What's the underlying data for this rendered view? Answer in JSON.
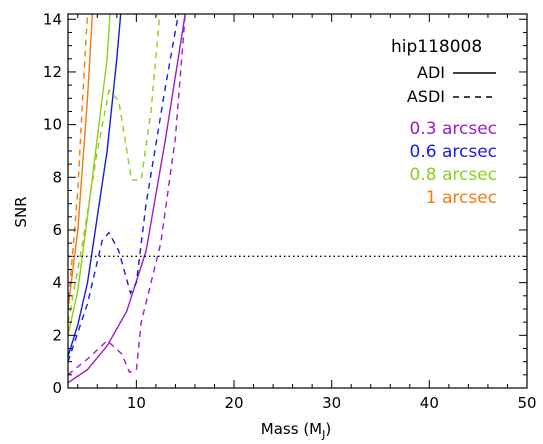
{
  "chart_data": {
    "type": "line",
    "title": "",
    "xlabel": "Mass (M",
    "xlabel_sub": "J",
    "xlabel_close": ")",
    "ylabel": "SNR",
    "xlim": [
      3,
      50
    ],
    "ylim": [
      0,
      14.2
    ],
    "xticks": [
      10,
      20,
      30,
      40,
      50
    ],
    "yticks": [
      0,
      2,
      4,
      6,
      8,
      10,
      12,
      14
    ],
    "threshold": {
      "y": 5,
      "style": "dotted"
    },
    "legend": {
      "title": "hip118008",
      "styles": [
        {
          "label": "ADI",
          "dash": "solid"
        },
        {
          "label": "ASDI",
          "dash": "dashed"
        }
      ],
      "separations": [
        {
          "value": "0.3",
          "unit": "arcsec",
          "color": "#9b1ccf"
        },
        {
          "value": "0.6",
          "unit": "arcsec",
          "color": "#1a1ae6"
        },
        {
          "value": "0.8",
          "unit": "arcsec",
          "color": "#8fcf1a"
        },
        {
          "value": "1",
          "unit": "arcsec",
          "color": "#f07c12"
        }
      ]
    },
    "series": [
      {
        "sep": "0.3",
        "method": "ADI",
        "color": "#9b1ccf",
        "dash": "solid",
        "points": [
          [
            3,
            0.2
          ],
          [
            5,
            0.7
          ],
          [
            7,
            1.6
          ],
          [
            9,
            2.9
          ],
          [
            11,
            5.2
          ],
          [
            13,
            9.5
          ],
          [
            15,
            14.2
          ]
        ]
      },
      {
        "sep": "0.3",
        "method": "ASDI",
        "color": "#9b1ccf",
        "dash": "dashed",
        "points": [
          [
            3,
            0.5
          ],
          [
            5,
            1.1
          ],
          [
            7,
            1.8
          ],
          [
            8.5,
            1.3
          ],
          [
            9.3,
            0.6
          ],
          [
            10,
            0.7
          ],
          [
            10.5,
            2.5
          ],
          [
            12.5,
            5.5
          ],
          [
            14,
            9.5
          ],
          [
            15,
            14.2
          ]
        ]
      },
      {
        "sep": "0.6",
        "method": "ADI",
        "color": "#1a1ae6",
        "dash": "solid",
        "points": [
          [
            3,
            1.2
          ],
          [
            4,
            2.4
          ],
          [
            5,
            4.0
          ],
          [
            6,
            6.5
          ],
          [
            7,
            9.0
          ],
          [
            8,
            12.5
          ],
          [
            8.4,
            14.2
          ]
        ]
      },
      {
        "sep": "0.6",
        "method": "ASDI",
        "color": "#1a1ae6",
        "dash": "dashed",
        "points": [
          [
            3,
            1.0
          ],
          [
            5,
            3.2
          ],
          [
            6.5,
            5.6
          ],
          [
            7.2,
            5.9
          ],
          [
            8.2,
            5.2
          ],
          [
            9.4,
            3.6
          ],
          [
            10,
            4.0
          ],
          [
            11,
            7.0
          ],
          [
            13,
            11.5
          ],
          [
            14.3,
            14.2
          ]
        ]
      },
      {
        "sep": "0.8",
        "method": "ADI",
        "color": "#8fcf1a",
        "dash": "solid",
        "points": [
          [
            3,
            2.0
          ],
          [
            4,
            3.7
          ],
          [
            5,
            6.5
          ],
          [
            6,
            9.5
          ],
          [
            7,
            12.5
          ],
          [
            7.3,
            14.2
          ]
        ]
      },
      {
        "sep": "0.8",
        "method": "ASDI",
        "color": "#8fcf1a",
        "dash": "dashed",
        "points": [
          [
            3,
            2.5
          ],
          [
            4.5,
            5.5
          ],
          [
            6,
            9.0
          ],
          [
            7.2,
            11.3
          ],
          [
            8.2,
            10.9
          ],
          [
            9.5,
            7.9
          ],
          [
            10.5,
            7.9
          ],
          [
            11.5,
            10.5
          ],
          [
            12.4,
            14.2
          ]
        ]
      },
      {
        "sep": "1",
        "method": "ADI",
        "color": "#f07c12",
        "dash": "solid",
        "points": [
          [
            3,
            3.0
          ],
          [
            4,
            6.0
          ],
          [
            5,
            11.0
          ],
          [
            5.5,
            14.2
          ]
        ]
      },
      {
        "sep": "1",
        "method": "ASDI",
        "color": "#f07c12",
        "dash": "dashed",
        "points": [
          [
            3,
            3.0
          ],
          [
            4,
            7.5
          ],
          [
            4.5,
            11.0
          ],
          [
            5,
            14.2
          ]
        ]
      }
    ]
  }
}
